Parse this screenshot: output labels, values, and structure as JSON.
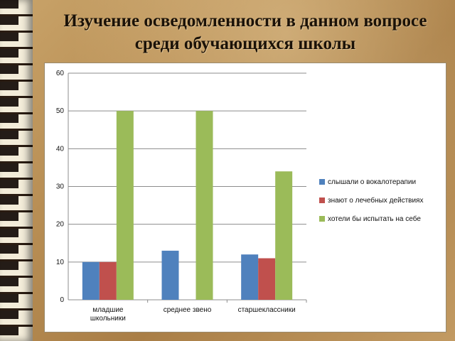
{
  "slide": {
    "title": "Изучение осведомленности в данном вопросе среди обучающихся школы"
  },
  "chart_data": {
    "type": "bar",
    "categories": [
      "младшие школьники",
      "среднее звено",
      "старшеклассники"
    ],
    "series": [
      {
        "name": "слышали о вокалотерапии",
        "values": [
          10,
          13,
          12
        ],
        "color": "#4f81bd"
      },
      {
        "name": "знают о лечебных действиях",
        "values": [
          10,
          0,
          11
        ],
        "color": "#c0504d"
      },
      {
        "name": "хотели бы испытать на себе",
        "values": [
          50,
          50,
          34
        ],
        "color": "#9bbb59"
      }
    ],
    "ylim": [
      0,
      60
    ],
    "yticks": [
      "0",
      "10",
      "20",
      "30",
      "40",
      "50",
      "60"
    ],
    "grid": true,
    "legend": "right"
  }
}
